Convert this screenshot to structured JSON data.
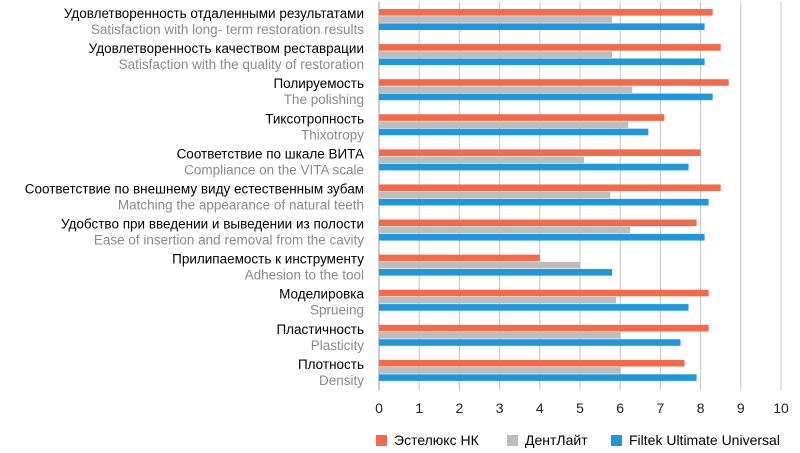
{
  "chart_data": {
    "type": "bar",
    "orientation": "horizontal",
    "categories": [
      {
        "ru": "Удовлетворенность отдаленными результатами",
        "en": "Satisfaction with long- term restoration results"
      },
      {
        "ru": "Удовлетворенность качеством реставрации",
        "en": "Satisfaction with the quality of restoration"
      },
      {
        "ru": "Полируемость",
        "en": "The polishing"
      },
      {
        "ru": "Тиксотропность",
        "en": "Thixotropy"
      },
      {
        "ru": "Соответствие по шкале ВИТА",
        "en": "Compliance on the VITA scale"
      },
      {
        "ru": "Соответствие по внешнему виду естественным зубам",
        "en": "Matching the appearance of natural teeth"
      },
      {
        "ru": "Удобство при введении и выведении из полости",
        "en": "Ease of insertion and removal from the cavity"
      },
      {
        "ru": "Прилипаемость к инструменту",
        "en": "Adhesion to the tool"
      },
      {
        "ru": "Моделировка",
        "en": "Sprueing"
      },
      {
        "ru": "Пластичность",
        "en": "Plasticity"
      },
      {
        "ru": "Плотность",
        "en": "Density"
      }
    ],
    "series": [
      {
        "name": "Эстелюкс НК",
        "color": "#f4694a",
        "values": [
          8.3,
          8.5,
          8.7,
          7.1,
          8.0,
          8.5,
          7.9,
          4.0,
          8.2,
          8.2,
          7.6
        ]
      },
      {
        "name": "ДентЛайт",
        "color": "#bdbdbd",
        "values": [
          5.8,
          5.8,
          6.3,
          6.2,
          5.1,
          5.75,
          6.25,
          5.0,
          5.9,
          6.0,
          6.0
        ]
      },
      {
        "name": "Filtek Ultimate Universal",
        "color": "#1f97dc",
        "values": [
          8.1,
          8.1,
          8.3,
          6.7,
          7.7,
          8.2,
          8.1,
          5.8,
          7.7,
          7.5,
          7.9
        ]
      }
    ],
    "xlim": [
      0,
      10
    ],
    "xticks": [
      0,
      1,
      2,
      3,
      4,
      5,
      6,
      7,
      8,
      9,
      10
    ],
    "grid": "vertical",
    "legend": "bottom"
  }
}
